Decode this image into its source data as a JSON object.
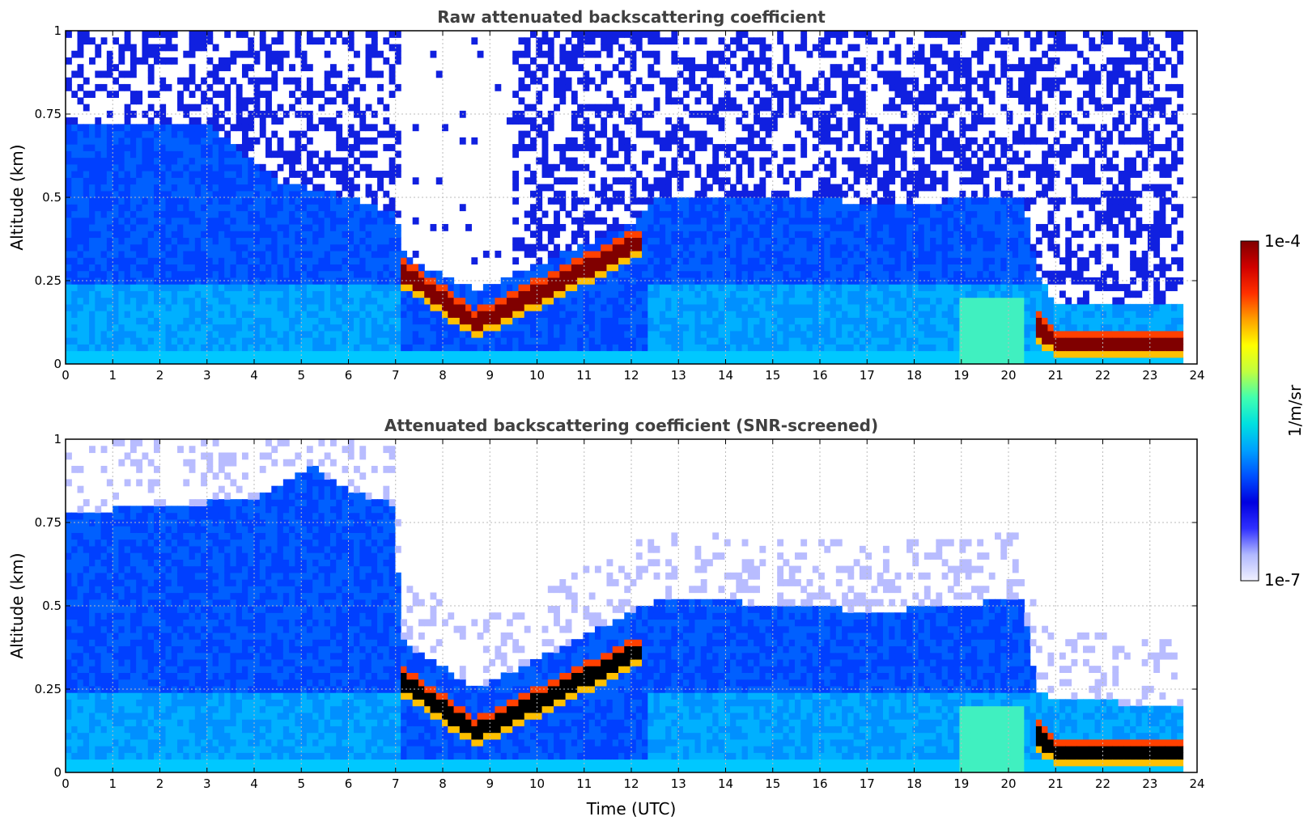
{
  "chart_data": [
    {
      "type": "heatmap",
      "title": "Raw attenuated backscattering coefficient",
      "xlabel": "",
      "ylabel": "Altitude (km)",
      "xlim": [
        0,
        24
      ],
      "ylim": [
        0,
        1
      ],
      "xticks": [
        "0",
        "1",
        "2",
        "3",
        "4",
        "5",
        "6",
        "7",
        "8",
        "9",
        "10",
        "11",
        "12",
        "13",
        "14",
        "15",
        "16",
        "17",
        "18",
        "19",
        "20",
        "21",
        "22",
        "23",
        "24"
      ],
      "yticks": [
        "0",
        "0.25",
        "0.5",
        "0.75",
        "1"
      ],
      "grid": true,
      "screened": false,
      "layers": {
        "aerosol_top_km": [
          [
            0,
            0.72
          ],
          [
            3,
            0.72
          ],
          [
            4.5,
            0.55
          ],
          [
            6,
            0.5
          ],
          [
            7,
            0.45
          ],
          [
            7.2,
            0.32
          ],
          [
            8.7,
            0.22
          ],
          [
            12,
            0.42
          ],
          [
            12.6,
            0.5
          ],
          [
            16,
            0.5
          ],
          [
            17,
            0.48
          ],
          [
            20.3,
            0.5
          ],
          [
            20.6,
            0.28
          ],
          [
            21,
            0.18
          ],
          [
            23.7,
            0.18
          ]
        ],
        "strong_layer": [
          [
            7.1,
            0.28
          ],
          [
            8.7,
            0.12
          ],
          [
            12.1,
            0.36
          ],
          [
            20.6,
            0.12
          ],
          [
            21,
            0.06
          ],
          [
            23.7,
            0.06
          ]
        ],
        "data_end_hour": 23.7
      }
    },
    {
      "type": "heatmap",
      "title": "Attenuated backscattering coefficient (SNR-screened)",
      "xlabel": "Time (UTC)",
      "ylabel": "Altitude (km)",
      "xlim": [
        0,
        24
      ],
      "ylim": [
        0,
        1
      ],
      "xticks": [
        "0",
        "1",
        "2",
        "3",
        "4",
        "5",
        "6",
        "7",
        "8",
        "9",
        "10",
        "11",
        "12",
        "13",
        "14",
        "15",
        "16",
        "17",
        "18",
        "19",
        "20",
        "21",
        "22",
        "23",
        "24"
      ],
      "yticks": [
        "0",
        "0.25",
        "0.5",
        "0.75",
        "1"
      ],
      "grid": true,
      "screened": true,
      "layers": {
        "aerosol_top_km": [
          [
            0,
            0.78
          ],
          [
            2,
            0.8
          ],
          [
            4,
            0.82
          ],
          [
            5.2,
            0.92
          ],
          [
            6,
            0.85
          ],
          [
            7,
            0.8
          ],
          [
            7.1,
            0.4
          ],
          [
            8.7,
            0.25
          ],
          [
            12,
            0.48
          ],
          [
            12.6,
            0.52
          ],
          [
            16,
            0.5
          ],
          [
            17,
            0.48
          ],
          [
            20.3,
            0.52
          ],
          [
            20.6,
            0.25
          ],
          [
            21,
            0.22
          ],
          [
            23.7,
            0.2
          ]
        ],
        "strong_layer": [
          [
            7.1,
            0.28
          ],
          [
            8.7,
            0.12
          ],
          [
            12.1,
            0.36
          ],
          [
            20.6,
            0.12
          ],
          [
            21,
            0.06
          ],
          [
            23.7,
            0.06
          ]
        ],
        "data_end_hour": 23.7
      }
    }
  ],
  "colorbar": {
    "label": "1/m/sr",
    "max_label": "1e-4",
    "min_label": "1e-7",
    "scale": "log",
    "range": [
      1e-07,
      0.0001
    ],
    "colors": [
      "#f0f0ff",
      "#b0b8ff",
      "#3030ff",
      "#0000e0",
      "#0050ff",
      "#00a0ff",
      "#00e0e0",
      "#40ffb0",
      "#c0ff40",
      "#ffff00",
      "#ffa000",
      "#ff3000",
      "#d00000",
      "#800000"
    ]
  }
}
